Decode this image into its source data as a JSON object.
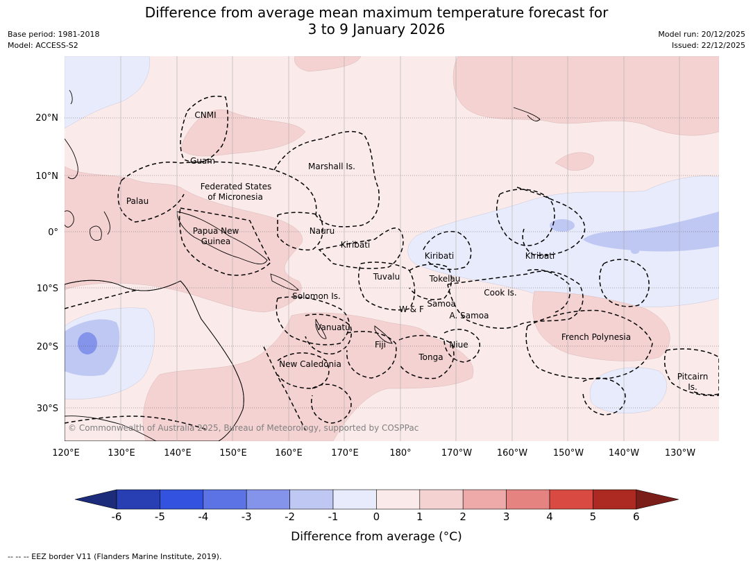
{
  "title": {
    "line1": "Difference from average mean maximum temperature forecast for",
    "line2": "3 to 9 January 2026"
  },
  "meta": {
    "base_period": "Base period: 1981-2018",
    "model": "Model: ACCESS-S2",
    "model_run": "Model run: 20/12/2025",
    "issued": "Issued: 22/12/2025"
  },
  "map": {
    "lon_labels": [
      "120°E",
      "130°E",
      "140°E",
      "150°E",
      "160°E",
      "170°E",
      "180°",
      "170°W",
      "160°W",
      "150°W",
      "140°W",
      "130°W"
    ],
    "lat_labels": [
      "20°N",
      "10°N",
      "0°",
      "10°S",
      "20°S",
      "30°S"
    ],
    "regions": [
      "CNMI",
      "Guam",
      "Marshall Is.",
      "Federated States",
      "of Micronesia",
      "Palau",
      "Papua New",
      "Guinea",
      "Nauru",
      "Kiribati",
      "Kiribati",
      "Kiribati",
      "Tuvalu",
      "Tokelau",
      "Cook Is.",
      "Solomon Is.",
      "W & F",
      "Samoa",
      "A. Samoa",
      "Vanuatu",
      "Fiji",
      "Niue",
      "French Polynesia",
      "Tonga",
      "New Caledonia",
      "Pitcairn",
      "Is."
    ],
    "copyright": "© Commonwealth of Australia 2025, Bureau of Meteorology, supported by COSPPac"
  },
  "colorbar": {
    "ticks": [
      "-6",
      "-5",
      "-4",
      "-3",
      "-2",
      "-1",
      "0",
      "1",
      "2",
      "3",
      "4",
      "5",
      "6"
    ],
    "label": "Difference from average (°C)",
    "colors": [
      "#1c2c7a",
      "#283fb4",
      "#3352e0",
      "#5b73e5",
      "#8494ea",
      "#bfc7f3",
      "#e8ebfb",
      "#fbeaea",
      "#f5d2d2",
      "#edaaa8",
      "#e4837f",
      "#d94a43",
      "#ad2a23",
      "#7b1e1a"
    ]
  },
  "footer": "--  --  -- EEZ border V11 (Flanders Marine Institute, 2019)."
}
